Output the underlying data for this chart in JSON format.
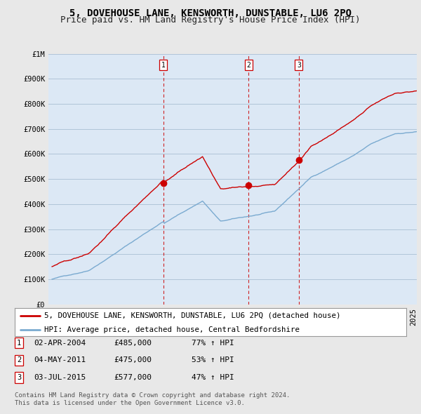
{
  "title": "5, DOVEHOUSE LANE, KENSWORTH, DUNSTABLE, LU6 2PQ",
  "subtitle": "Price paid vs. HM Land Registry's House Price Index (HPI)",
  "ylim": [
    0,
    1000000
  ],
  "yticks": [
    0,
    100000,
    200000,
    300000,
    400000,
    500000,
    600000,
    700000,
    800000,
    900000,
    1000000
  ],
  "ytick_labels": [
    "£0",
    "£100K",
    "£200K",
    "£300K",
    "£400K",
    "£500K",
    "£600K",
    "£700K",
    "£800K",
    "£900K",
    "£1M"
  ],
  "background_color": "#e8e8e8",
  "plot_background": "#dce8f5",
  "grid_color": "#b0c4d8",
  "sale_dates": [
    2004.25,
    2011.34,
    2015.5
  ],
  "sale_prices": [
    485000,
    475000,
    577000
  ],
  "sale_labels": [
    "1",
    "2",
    "3"
  ],
  "sale_line_color": "#cc0000",
  "hpi_line_color": "#7aaad0",
  "legend_sale_label": "5, DOVEHOUSE LANE, KENSWORTH, DUNSTABLE, LU6 2PQ (detached house)",
  "legend_hpi_label": "HPI: Average price, detached house, Central Bedfordshire",
  "table_entries": [
    {
      "num": "1",
      "date": "02-APR-2004",
      "price": "£485,000",
      "change": "77% ↑ HPI"
    },
    {
      "num": "2",
      "date": "04-MAY-2011",
      "price": "£475,000",
      "change": "53% ↑ HPI"
    },
    {
      "num": "3",
      "date": "03-JUL-2015",
      "price": "£577,000",
      "change": "47% ↑ HPI"
    }
  ],
  "footer_text": "Contains HM Land Registry data © Crown copyright and database right 2024.\nThis data is licensed under the Open Government Licence v3.0.",
  "title_fontsize": 10,
  "subtitle_fontsize": 9,
  "tick_fontsize": 7.5,
  "xlim_left": 1994.7,
  "xlim_right": 2025.3
}
